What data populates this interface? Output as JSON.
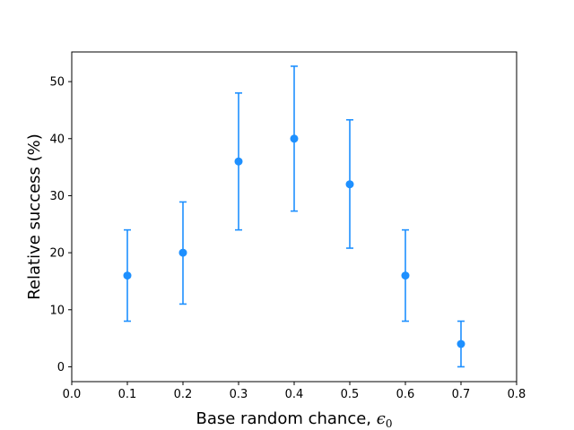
{
  "chart_data": {
    "type": "scatter",
    "title": "",
    "xlabel": "Base random chance, ",
    "xlabel_symbol": "ϵ",
    "xlabel_subscript": "0",
    "ylabel": "Relative success (%)",
    "xlim": [
      0.0,
      0.8
    ],
    "ylim": [
      -2.6,
      55.2
    ],
    "xticks": [
      0.0,
      0.1,
      0.2,
      0.3,
      0.4,
      0.5,
      0.6,
      0.7,
      0.8
    ],
    "xtick_labels": [
      "0.0",
      "0.1",
      "0.2",
      "0.3",
      "0.4",
      "0.5",
      "0.6",
      "0.7",
      "0.8"
    ],
    "yticks": [
      0,
      10,
      20,
      30,
      40,
      50
    ],
    "ytick_labels": [
      "0",
      "10",
      "20",
      "30",
      "40",
      "50"
    ],
    "grid": false,
    "color": "#1e90ff",
    "series": [
      {
        "x": [
          0.1,
          0.2,
          0.3,
          0.4,
          0.5,
          0.6,
          0.7
        ],
        "y": [
          16,
          20,
          36,
          40,
          32,
          16,
          4
        ],
        "yerr_low": [
          8,
          11,
          24,
          27.3,
          20.8,
          8,
          0
        ],
        "yerr_high": [
          24,
          28.9,
          48,
          52.7,
          43.3,
          24,
          8
        ]
      }
    ]
  }
}
